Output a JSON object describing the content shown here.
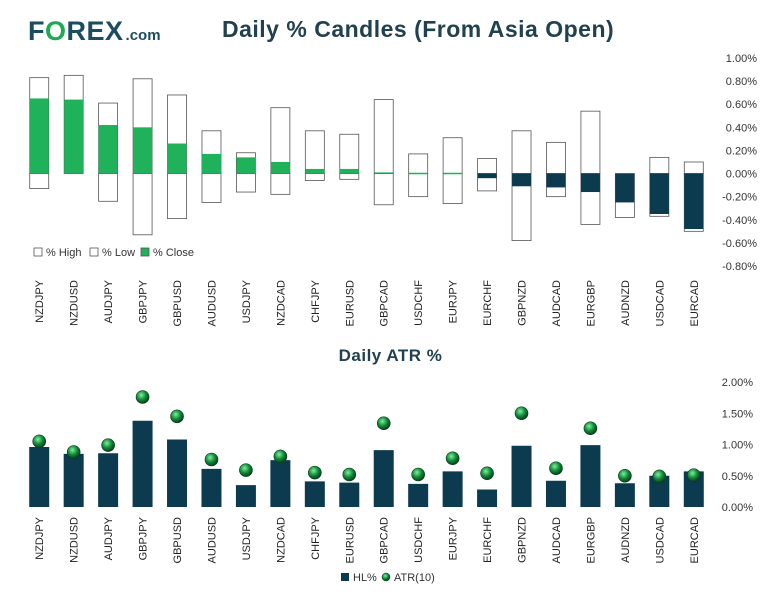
{
  "logo": {
    "pre": "F",
    "o": "O",
    "post": "REX",
    "suffix": ".com"
  },
  "colors": {
    "close": "#1fb25a",
    "close_neg": "#0c3b4f",
    "hl_bar": "#0c3b4f",
    "atr_dot": "#138a3a",
    "box_border": "#555555"
  },
  "chart_data": [
    {
      "type": "candle",
      "title": "Daily % Candles (From Asia Open)",
      "categories": [
        "NZDJPY",
        "NZDUSD",
        "AUDJPY",
        "GBPJPY",
        "GBPUSD",
        "AUDUSD",
        "USDJPY",
        "NZDCAD",
        "CHFJPY",
        "EURUSD",
        "GBPCAD",
        "USDCHF",
        "EURJPY",
        "EURCHF",
        "GBPNZD",
        "AUDCAD",
        "EURGBP",
        "AUDNZD",
        "USDCAD",
        "EURCAD"
      ],
      "high": [
        0.83,
        0.85,
        0.61,
        0.82,
        0.68,
        0.37,
        0.18,
        0.57,
        0.37,
        0.34,
        0.64,
        0.17,
        0.31,
        0.13,
        0.37,
        0.27,
        0.54,
        0.0,
        0.14,
        0.1
      ],
      "low": [
        -0.13,
        0.0,
        -0.24,
        -0.53,
        -0.39,
        -0.25,
        -0.16,
        -0.18,
        -0.06,
        -0.05,
        -0.27,
        -0.2,
        -0.26,
        -0.15,
        -0.58,
        -0.2,
        -0.44,
        -0.38,
        -0.37,
        -0.5
      ],
      "close": [
        0.65,
        0.64,
        0.42,
        0.4,
        0.26,
        0.17,
        0.14,
        0.1,
        0.04,
        0.04,
        0.01,
        0.0,
        0.0,
        -0.04,
        -0.11,
        -0.12,
        -0.16,
        -0.25,
        -0.35,
        -0.48
      ],
      "ylim": [
        -0.8,
        1.0
      ],
      "yticks": [
        "1.00%",
        "0.80%",
        "0.60%",
        "0.40%",
        "0.20%",
        "0.00%",
        "-0.20%",
        "-0.40%",
        "-0.60%",
        "-0.80%"
      ],
      "ytick_values": [
        1.0,
        0.8,
        0.6,
        0.4,
        0.2,
        0.0,
        -0.2,
        -0.4,
        -0.6,
        -0.8
      ],
      "legend": [
        "% High",
        "% Low",
        "% Close"
      ]
    },
    {
      "type": "bar",
      "title": "Daily ATR %",
      "categories": [
        "NZDJPY",
        "NZDUSD",
        "AUDJPY",
        "GBPJPY",
        "GBPUSD",
        "AUDUSD",
        "USDJPY",
        "NZDCAD",
        "CHFJPY",
        "EURUSD",
        "GBPCAD",
        "USDCHF",
        "EURJPY",
        "EURCHF",
        "GBPNZD",
        "AUDCAD",
        "EURGBP",
        "AUDNZD",
        "USDCAD",
        "EURCAD"
      ],
      "hl": [
        0.96,
        0.85,
        0.86,
        1.38,
        1.08,
        0.61,
        0.35,
        0.75,
        0.41,
        0.39,
        0.91,
        0.37,
        0.57,
        0.28,
        0.98,
        0.42,
        0.99,
        0.38,
        0.5,
        0.57
      ],
      "atr": [
        1.05,
        0.88,
        0.99,
        1.76,
        1.45,
        0.76,
        0.59,
        0.81,
        0.55,
        0.52,
        1.34,
        0.52,
        0.78,
        0.54,
        1.5,
        0.62,
        1.26,
        0.5,
        0.49,
        0.51
      ],
      "ylim": [
        0.0,
        2.0
      ],
      "yticks": [
        "2.00%",
        "1.50%",
        "1.00%",
        "0.50%",
        "0.00%"
      ],
      "ytick_values": [
        2.0,
        1.5,
        1.0,
        0.5,
        0.0
      ],
      "legend": [
        "HL%",
        "ATR(10)"
      ]
    }
  ]
}
